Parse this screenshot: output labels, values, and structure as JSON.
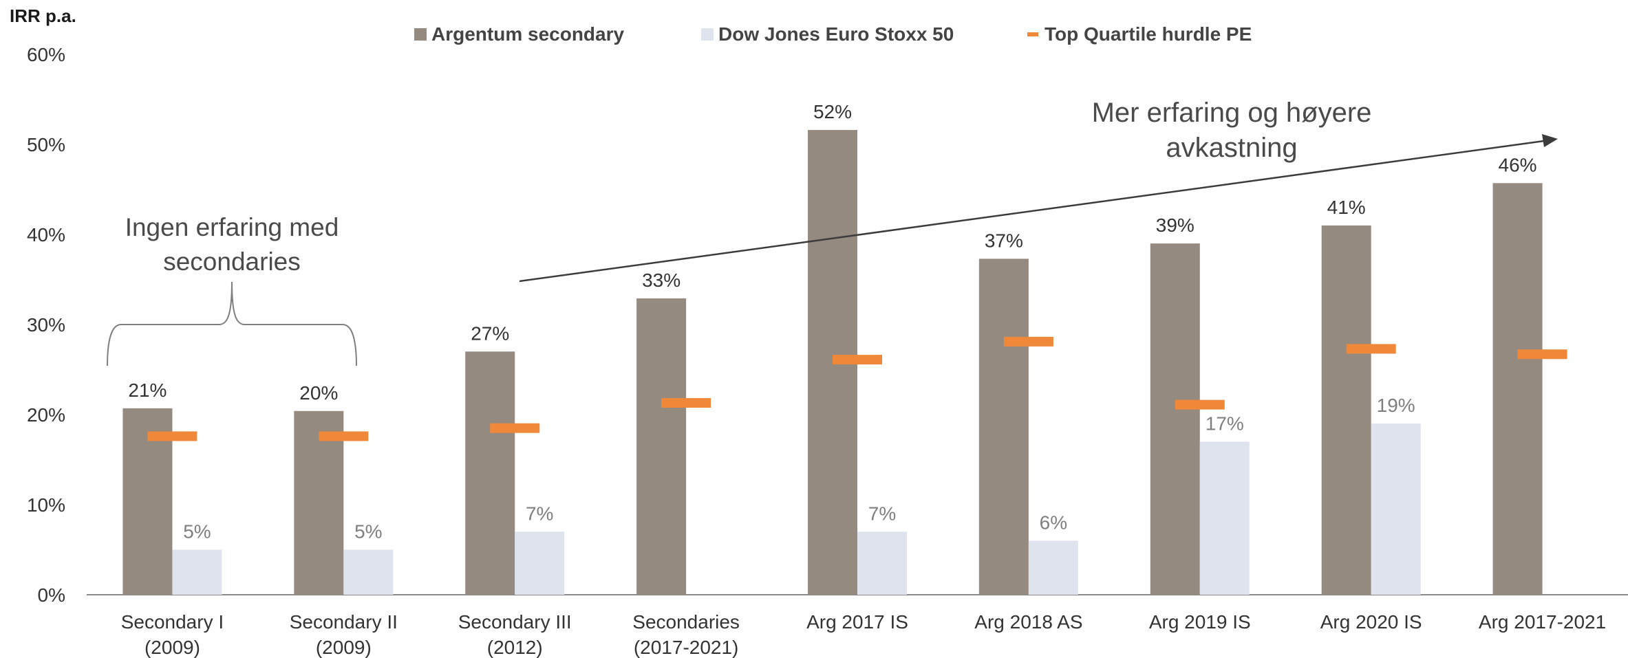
{
  "chart_data": {
    "type": "bar",
    "ylabel": "IRR p.a.",
    "ylim": [
      0,
      60
    ],
    "yticks": [
      0,
      10,
      20,
      30,
      40,
      50,
      60
    ],
    "ytick_labels": [
      "0%",
      "10%",
      "20%",
      "30%",
      "40%",
      "50%",
      "60%"
    ],
    "categories": [
      [
        "Secondary I",
        "(2009)"
      ],
      [
        "Secondary II",
        "(2009)"
      ],
      [
        "Secondary III",
        "(2012)"
      ],
      [
        "Secondaries",
        "(2017-2021)"
      ],
      [
        "Arg 2017 IS"
      ],
      [
        "Arg 2018 AS"
      ],
      [
        "Arg 2019 IS"
      ],
      [
        "Arg 2020 IS"
      ],
      [
        "Arg 2017-2021"
      ]
    ],
    "series": [
      {
        "name": "Argentum secondary",
        "kind": "bar",
        "color": "#948a7f",
        "values": [
          20.7,
          20.4,
          27.0,
          32.9,
          51.6,
          37.3,
          39.0,
          41.0,
          45.7
        ],
        "labels": [
          "21%",
          "20%",
          "27%",
          "33%",
          "52%",
          "37%",
          "39%",
          "41%",
          "46%"
        ]
      },
      {
        "name": "Dow Jones Euro Stoxx 50",
        "kind": "bar",
        "color": "#dee3ee",
        "values": [
          5.0,
          5.0,
          7.0,
          null,
          7.0,
          6.0,
          17.0,
          19.0,
          null
        ],
        "labels": [
          "5%",
          "5%",
          "7%",
          "",
          "7%",
          "6%",
          "17%",
          "19%",
          ""
        ]
      },
      {
        "name": "Top Quartile hurdle PE",
        "kind": "marker",
        "color": "#f0883a",
        "values": [
          17.6,
          17.6,
          18.5,
          21.3,
          26.1,
          28.1,
          21.1,
          27.3,
          26.7
        ]
      }
    ],
    "legend_position": "top-center",
    "grid": false,
    "annotations": {
      "left_note": [
        "Ingen erfaring med",
        "secondaries"
      ],
      "right_note": [
        "Mer erfaring og høyere",
        "avkastning"
      ]
    }
  }
}
